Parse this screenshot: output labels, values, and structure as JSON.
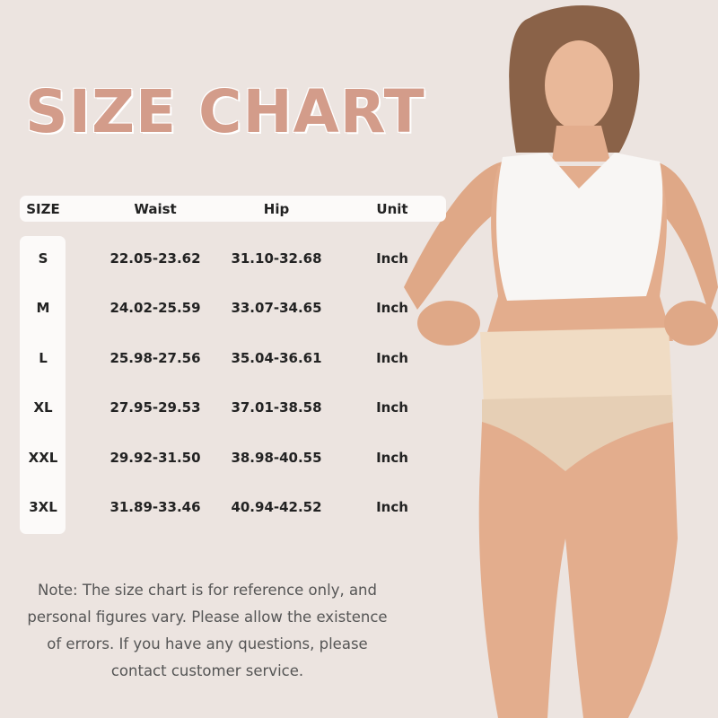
{
  "title": "SIZE CHART",
  "table": {
    "headers": [
      "SIZE",
      "Waist",
      "Hip",
      "Unit"
    ],
    "rows": [
      {
        "size": "S",
        "waist": "22.05-23.62",
        "hip": "31.10-32.68",
        "unit": "Inch"
      },
      {
        "size": "M",
        "waist": "24.02-25.59",
        "hip": "33.07-34.65",
        "unit": "Inch"
      },
      {
        "size": "L",
        "waist": "25.98-27.56",
        "hip": "35.04-36.61",
        "unit": "Inch"
      },
      {
        "size": "XL",
        "waist": "27.95-29.53",
        "hip": "37.01-38.58",
        "unit": "Inch"
      },
      {
        "size": "XXL",
        "waist": "29.92-31.50",
        "hip": "38.98-40.55",
        "unit": "Inch"
      },
      {
        "size": "3XL",
        "waist": "31.89-33.46",
        "hip": "40.94-42.52",
        "unit": "Inch"
      }
    ]
  },
  "note": {
    "lines": [
      "Note: The size chart is for reference only, and",
      "personal figures vary. Please allow the existence",
      "of errors. If you have any questions, please",
      "contact customer service."
    ]
  },
  "colors": {
    "background": "#ece4e0",
    "title": "#d39c8a",
    "table_panel": "#fcfaf9",
    "text": "#222222"
  }
}
